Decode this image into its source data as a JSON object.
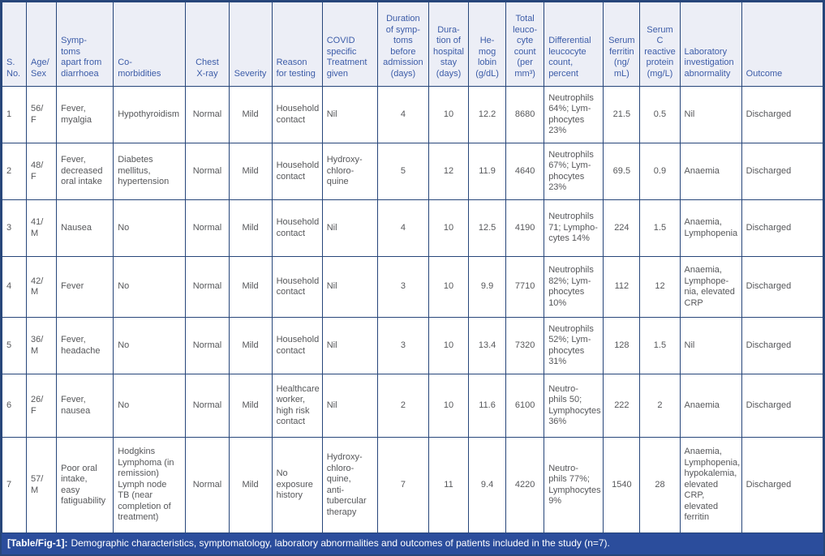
{
  "table": {
    "columns": [
      {
        "label": "S.\nNo.",
        "align": "left"
      },
      {
        "label": "Age/\nSex",
        "align": "left"
      },
      {
        "label": "Symp-\ntoms\napart from\ndiarrhoea",
        "align": "left"
      },
      {
        "label": "Co-\nmorbidities",
        "align": "left"
      },
      {
        "label": "Chest\nX-ray",
        "align": "center"
      },
      {
        "label": "Severity",
        "align": "center"
      },
      {
        "label": "Reason\nfor testing",
        "align": "left"
      },
      {
        "label": "COVID\nspecific\nTreatment\ngiven",
        "align": "left"
      },
      {
        "label": "Duration\nof symp-\ntoms\nbefore\nadmission\n(days)",
        "align": "center"
      },
      {
        "label": "Dura-\ntion of\nhospital\nstay\n(days)",
        "align": "center"
      },
      {
        "label": "He-\nmog\nlobin\n(g/dL)",
        "align": "center"
      },
      {
        "label": "Total\nleuco-\ncyte\ncount\n(per\nmm³)",
        "align": "center"
      },
      {
        "label": "Differential\nleucocyte\ncount,\npercent",
        "align": "left"
      },
      {
        "label": "Serum\nferritin\n(ng/\nmL)",
        "align": "center"
      },
      {
        "label": "Serum\nC\nreactive\nprotein\n(mg/L)",
        "align": "center"
      },
      {
        "label": "Laboratory\ninvestigation\nabnormality",
        "align": "left"
      },
      {
        "label": "Outcome",
        "align": "left"
      }
    ],
    "rows": [
      [
        "1",
        "56/\nF",
        "Fever,\nmyalgia",
        "Hypothyroidism",
        "Normal",
        "Mild",
        "Household\ncontact",
        "Nil",
        "4",
        "10",
        "12.2",
        "8680",
        "Neutrophils\n64%; Lym-\nphocytes\n23%",
        "21.5",
        "0.5",
        "Nil",
        "Discharged"
      ],
      [
        "2",
        "48/\nF",
        "Fever,\ndecreased\noral intake",
        "Diabetes\nmellitus,\nhypertension",
        "Normal",
        "Mild",
        "Household\ncontact",
        "Hydroxy-\nchloro-\nquine",
        "5",
        "12",
        "11.9",
        "4640",
        "Neutrophils\n67%; Lym-\nphocytes\n23%",
        "69.5",
        "0.9",
        "Anaemia",
        "Discharged"
      ],
      [
        "3",
        "41/\nM",
        "Nausea",
        "No",
        "Normal",
        "Mild",
        "Household\ncontact",
        "Nil",
        "4",
        "10",
        "12.5",
        "4190",
        "Neutrophils\n71; Lympho-\ncytes 14%",
        "224",
        "1.5",
        "Anaemia,\nLymphopenia",
        "Discharged"
      ],
      [
        "4",
        "42/\nM",
        "Fever",
        "No",
        "Normal",
        "Mild",
        "Household\ncontact",
        "Nil",
        "3",
        "10",
        "9.9",
        "7710",
        "Neutrophils\n82%; Lym-\nphocytes\n10%",
        "112",
        "12",
        "Anaemia,\nLymphope-\nnia, elevated\nCRP",
        "Discharged"
      ],
      [
        "5",
        "36/\nM",
        "Fever,\nheadache",
        "No",
        "Normal",
        "Mild",
        "Household\ncontact",
        "Nil",
        "3",
        "10",
        "13.4",
        "7320",
        "Neutrophils\n52%; Lym-\nphocytes\n31%",
        "128",
        "1.5",
        "Nil",
        "Discharged"
      ],
      [
        "6",
        "26/\nF",
        "Fever,\nnausea",
        "No",
        "Normal",
        "Mild",
        "Healthcare\nworker,\nhigh risk\ncontact",
        "Nil",
        "2",
        "10",
        "11.6",
        "6100",
        "Neutro-\nphils 50;\nLymphocytes\n36%",
        "222",
        "2",
        "Anaemia",
        "Discharged"
      ],
      [
        "7",
        "57/\nM",
        "Poor oral\nintake,\neasy\nfatiguability",
        "Hodgkins\nLymphoma (in\nremission)\nLymph node\nTB (near\ncompletion of\ntreatment)",
        "Normal",
        "Mild",
        "No\nexposure\nhistory",
        "Hydroxy-\nchloro-\nquine,\nanti-\ntubercular\ntherapy",
        "7",
        "11",
        "9.4",
        "4220",
        "Neutro-\nphils 77%;\nLymphocytes\n9%",
        "1540",
        "28",
        "Anaemia,\nLymphopenia,\nhypokalemia,\nelevated CRP,\nelevated\nferritin",
        "Discharged"
      ]
    ]
  },
  "caption": {
    "label": "[Table/Fig-1]:",
    "text": "Demographic characteristics, symptomatology, laboratory abnormalities and outcomes of patients included in the study (n=7)."
  },
  "colors": {
    "border": "#27467a",
    "header_bg": "#eceef6",
    "header_text": "#3c5ca8",
    "body_text": "#56575a",
    "caption_bg": "#2b4d9c",
    "caption_text": "#ffffff"
  }
}
